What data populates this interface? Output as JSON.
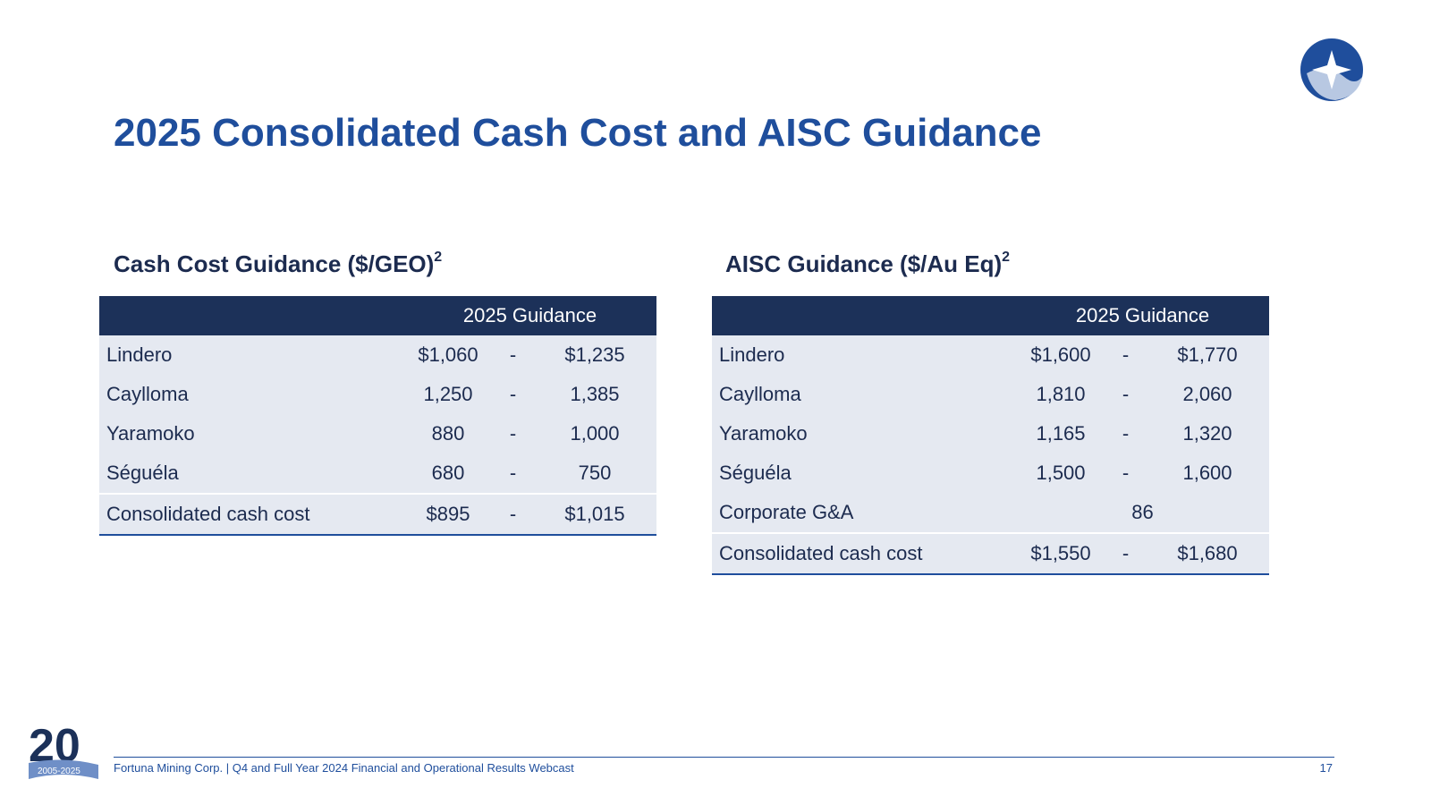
{
  "title": "2025 Consolidated Cash Cost and AISC Guidance",
  "colors": {
    "title": "#1f4e9c",
    "header": "#1c3159",
    "row": "#e5e9f1",
    "rule": "#1f4e9c"
  },
  "cash_cost": {
    "title": "Cash Cost Guidance ($/GEO)",
    "footnote": "2",
    "header": "2025 Guidance",
    "rows": [
      {
        "name": "Lindero",
        "low": "$1,060",
        "sep": "-",
        "high": "$1,235"
      },
      {
        "name": "Caylloma",
        "low": "1,250",
        "sep": "-",
        "high": "1,385"
      },
      {
        "name": "Yaramoko",
        "low": "880",
        "sep": "-",
        "high": "1,000"
      },
      {
        "name": "Séguéla",
        "low": "680",
        "sep": "-",
        "high": "750"
      }
    ],
    "total": {
      "name": "Consolidated cash cost",
      "low": "$895",
      "sep": "-",
      "high": "$1,015"
    }
  },
  "aisc": {
    "title": "AISC Guidance ($/Au Eq)",
    "footnote": "2",
    "header": "2025 Guidance",
    "rows": [
      {
        "name": "Lindero",
        "low": "$1,600",
        "sep": "-",
        "high": "$1,770"
      },
      {
        "name": "Caylloma",
        "low": "1,810",
        "sep": "-",
        "high": "2,060"
      },
      {
        "name": "Yaramoko",
        "low": "1,165",
        "sep": "-",
        "high": "1,320"
      },
      {
        "name": "Séguéla",
        "low": "1,500",
        "sep": "-",
        "high": "1,600"
      }
    ],
    "corporate": {
      "name": "Corporate G&A",
      "value": "86"
    },
    "total": {
      "name": "Consolidated cash cost",
      "low": "$1,550",
      "sep": "-",
      "high": "$1,680"
    }
  },
  "footer": {
    "text": "Fortuna Mining Corp. | Q4 and Full Year 2024 Financial and Operational Results Webcast",
    "page": "17"
  },
  "anniversary": {
    "number": "20",
    "years": "2005-2025"
  },
  "icons": {
    "logo": "fortuna-star-logo-icon",
    "anniversary": "20-year-anniversary-badge-icon"
  }
}
